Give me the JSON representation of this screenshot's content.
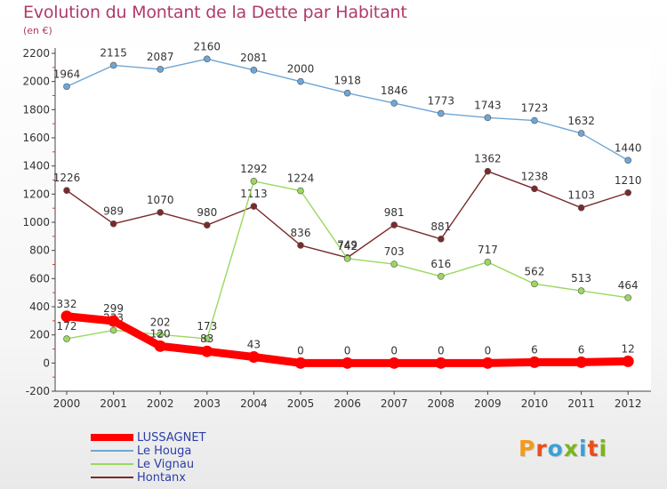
{
  "chart_data": {
    "type": "line",
    "title": "Evolution du Montant de la Dette par Habitant",
    "subtitle": "(en €)",
    "categories": [
      "2000",
      "2001",
      "2002",
      "2003",
      "2004",
      "2005",
      "2006",
      "2007",
      "2008",
      "2009",
      "2010",
      "2011",
      "2012"
    ],
    "ylim": [
      -200,
      2200
    ],
    "yticks": [
      -200,
      0,
      200,
      400,
      600,
      800,
      1000,
      1200,
      1400,
      1600,
      1800,
      2000,
      2200
    ],
    "grid": false,
    "legend_position": "bottom-left",
    "series": [
      {
        "name": "LUSSAGNET",
        "color": "#ff0000",
        "values": [
          332,
          299,
          120,
          83,
          43,
          0,
          0,
          0,
          0,
          0,
          6,
          6,
          12
        ]
      },
      {
        "name": "Le Houga",
        "color": "#6fa6d6",
        "values": [
          1964,
          2115,
          2087,
          2160,
          2081,
          2000,
          1918,
          1846,
          1773,
          1743,
          1723,
          1632,
          1440
        ]
      },
      {
        "name": "Le Vignau",
        "color": "#9ad85f",
        "values": [
          172,
          233,
          202,
          173,
          1292,
          1224,
          742,
          703,
          616,
          717,
          562,
          513,
          464
        ]
      },
      {
        "name": "Hontanx",
        "color": "#7a2a2a",
        "values": [
          1226,
          989,
          1070,
          980,
          1113,
          836,
          749,
          981,
          881,
          1362,
          1238,
          1103,
          1210
        ]
      }
    ]
  },
  "logo": {
    "text": "Proxiti",
    "colors": [
      "#f39a1c",
      "#e94e1b",
      "#3aa0d8",
      "#7ab51d",
      "#3aa0d8",
      "#e94e1b",
      "#7ab51d"
    ]
  }
}
